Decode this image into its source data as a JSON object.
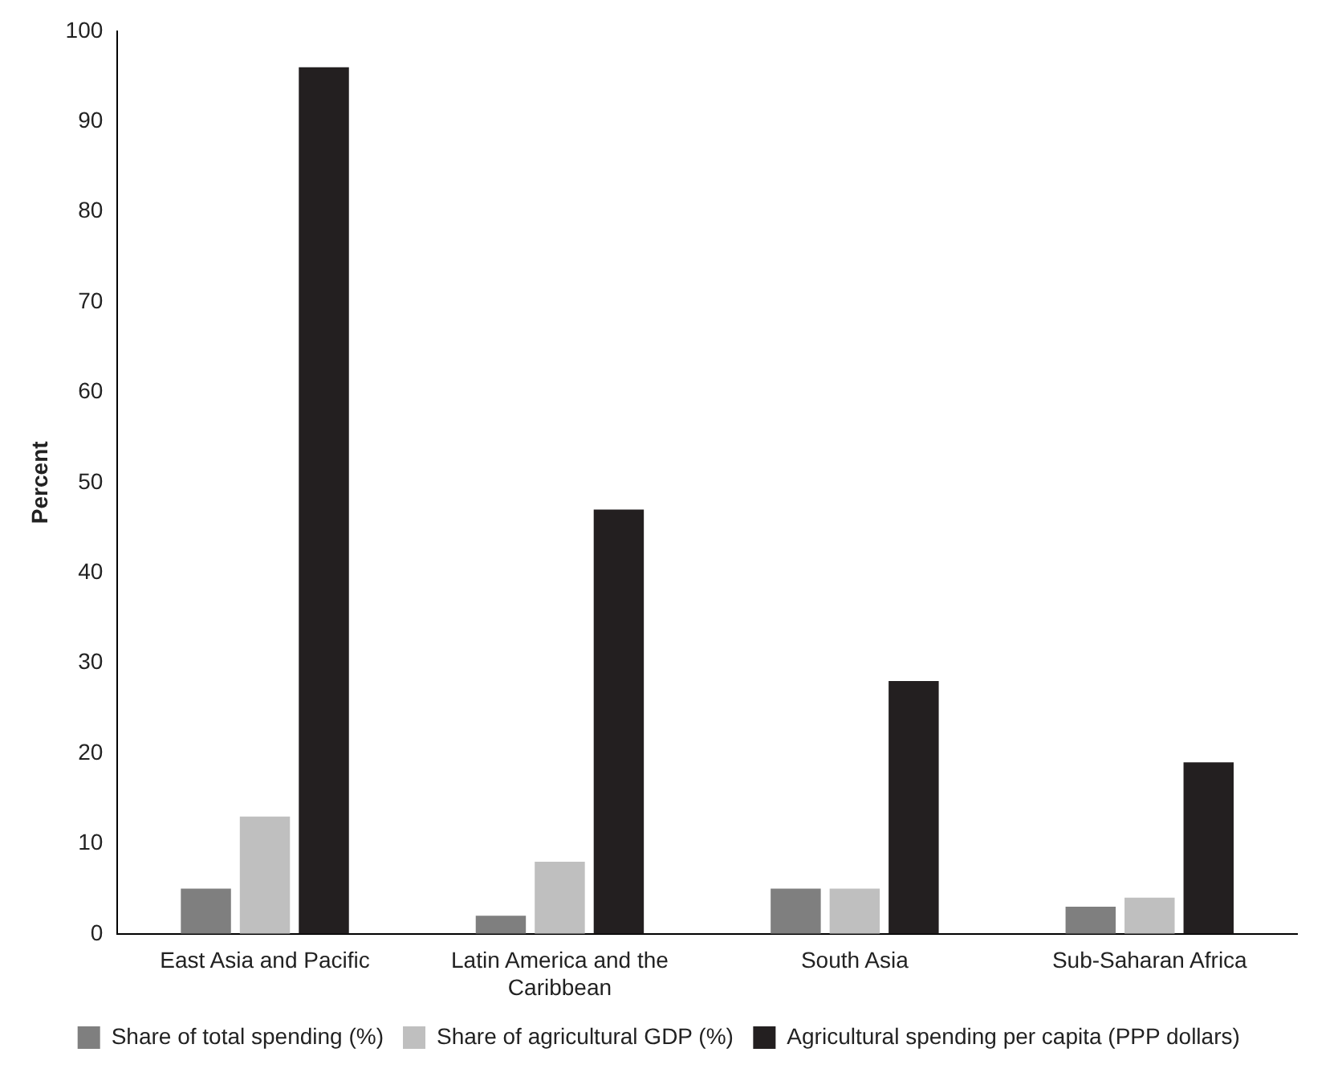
{
  "chart_data": {
    "type": "bar",
    "ylabel": "Percent",
    "categories": [
      "East Asia and Pacific",
      "Latin America and the Caribbean",
      "South Asia",
      "Sub-Saharan Africa"
    ],
    "series": [
      {
        "name": "Share of total spending (%)",
        "color": "#7f7f7f",
        "values": [
          5,
          2,
          5,
          3
        ]
      },
      {
        "name": "Share of agricultural GDP (%)",
        "color": "#bfbfbf",
        "values": [
          13,
          8,
          5,
          4
        ]
      },
      {
        "name": "Agricultural spending per capita (PPP dollars)",
        "color": "#231f20",
        "values": [
          96,
          47,
          28,
          19
        ]
      }
    ],
    "ylim": [
      0,
      100
    ],
    "yticks": [
      0,
      10,
      20,
      30,
      40,
      50,
      60,
      70,
      80,
      90,
      100
    ],
    "grid": false,
    "legend": "bottom"
  }
}
